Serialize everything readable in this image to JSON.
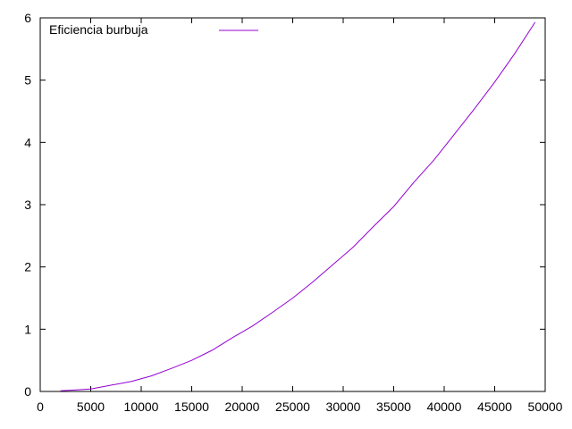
{
  "chart_data": {
    "type": "line",
    "title": "",
    "xlabel": "",
    "ylabel": "",
    "xlim": [
      0,
      50000
    ],
    "ylim": [
      0,
      6
    ],
    "xticks": [
      0,
      5000,
      10000,
      15000,
      20000,
      25000,
      30000,
      35000,
      40000,
      45000,
      50000
    ],
    "yticks": [
      0,
      1,
      2,
      3,
      4,
      5,
      6
    ],
    "grid": false,
    "legend": {
      "position": "top-left"
    },
    "series": [
      {
        "name": "Eficiencia burbuja",
        "color": "#9400d3",
        "x": [
          2000,
          3000,
          5000,
          7000,
          9000,
          11000,
          13000,
          15000,
          17000,
          19000,
          21000,
          23000,
          25000,
          27000,
          29000,
          31000,
          33000,
          35000,
          37000,
          39000,
          41000,
          43000,
          45000,
          47000,
          49000
        ],
        "y": [
          0.01,
          0.02,
          0.04,
          0.1,
          0.16,
          0.25,
          0.37,
          0.5,
          0.66,
          0.86,
          1.05,
          1.27,
          1.5,
          1.76,
          2.04,
          2.32,
          2.65,
          2.97,
          3.36,
          3.72,
          4.13,
          4.54,
          4.97,
          5.43,
          5.93
        ]
      }
    ]
  }
}
